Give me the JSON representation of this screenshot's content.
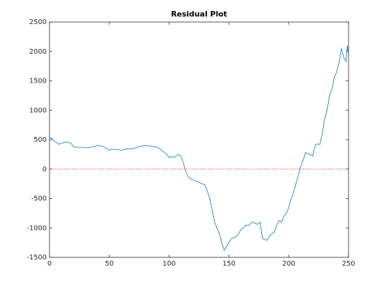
{
  "chart_data": {
    "type": "line",
    "title": "Residual Plot",
    "x": [
      0,
      2,
      4,
      6,
      8,
      10,
      14,
      16,
      18,
      20,
      24,
      28,
      32,
      36,
      40,
      44,
      48,
      50,
      52,
      56,
      60,
      64,
      70,
      76,
      80,
      86,
      90,
      94,
      98,
      100,
      102,
      104,
      106,
      108,
      110,
      112,
      114,
      116,
      118,
      120,
      122,
      124,
      126,
      128,
      130,
      132,
      134,
      136,
      138,
      140,
      142,
      144,
      146,
      148,
      150,
      152,
      154,
      156,
      158,
      160,
      162,
      164,
      166,
      168,
      170,
      172,
      174,
      176,
      178,
      180,
      182,
      184,
      186,
      188,
      190,
      192,
      194,
      196,
      198,
      200,
      202,
      204,
      206,
      208,
      210,
      212,
      214,
      216,
      218,
      220,
      222,
      224,
      226,
      228,
      230,
      232,
      234,
      236,
      238,
      240,
      242,
      244,
      246,
      248,
      249,
      250
    ],
    "series": [
      {
        "color": "#0072bd",
        "values": [
          540,
          520,
          480,
          450,
          420,
          440,
          460,
          450,
          440,
          380,
          370,
          370,
          360,
          380,
          400,
          390,
          350,
          320,
          340,
          330,
          320,
          340,
          350,
          390,
          400,
          390,
          370,
          320,
          250,
          200,
          210,
          200,
          230,
          250,
          210,
          100,
          -50,
          -130,
          -170,
          -180,
          -200,
          -210,
          -240,
          -250,
          -270,
          -380,
          -500,
          -700,
          -900,
          -1000,
          -1100,
          -1250,
          -1380,
          -1320,
          -1250,
          -1180,
          -1170,
          -1150,
          -1100,
          -1030,
          -1000,
          -950,
          -960,
          -930,
          -900,
          -920,
          -940,
          -900,
          -1180,
          -1200,
          -1210,
          -1130,
          -1100,
          -1070,
          -950,
          -870,
          -900,
          -800,
          -750,
          -650,
          -500,
          -400,
          -250,
          -100,
          50,
          150,
          280,
          260,
          250,
          220,
          400,
          430,
          420,
          600,
          850,
          1000,
          1250,
          1350,
          1550,
          1650,
          1800,
          2050,
          1900,
          1830,
          2100,
          1950
        ]
      }
    ],
    "reference_line": {
      "y": 0,
      "color": "#ff0000"
    },
    "xlim": [
      0,
      250
    ],
    "xticks": [
      0,
      50,
      100,
      150,
      200,
      250
    ],
    "ylim": [
      -1500,
      2500
    ],
    "yticks": [
      -1500,
      -1000,
      -500,
      0,
      500,
      1000,
      1500,
      2000,
      2500
    ]
  }
}
